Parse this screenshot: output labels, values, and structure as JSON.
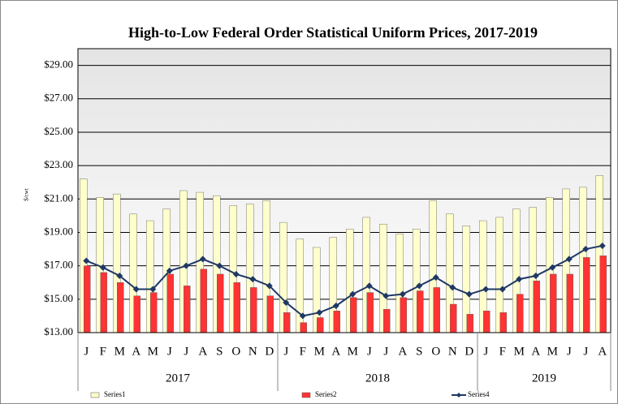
{
  "chart_data": {
    "type": "bar_line",
    "title": "High-to-Low Federal Order Statistical Uniform Prices, 2017-2019",
    "ylabel": "$/cwt",
    "categories": [
      "J",
      "F",
      "M",
      "A",
      "M",
      "J",
      "J",
      "A",
      "S",
      "O",
      "N",
      "D",
      "J",
      "F",
      "M",
      "A",
      "M",
      "J",
      "J",
      "A",
      "S",
      "O",
      "N",
      "D",
      "J",
      "F",
      "M",
      "A",
      "M",
      "J",
      "J",
      "A"
    ],
    "x_groups": [
      {
        "label": "2017",
        "size": 12
      },
      {
        "label": "2018",
        "size": 12
      },
      {
        "label": "2019",
        "size": 8
      }
    ],
    "series": [
      {
        "name": "Series1",
        "type": "bar",
        "color": "#ffffcc",
        "values": [
          22.2,
          21.1,
          21.3,
          20.1,
          19.7,
          20.4,
          21.5,
          21.4,
          21.2,
          20.6,
          20.7,
          20.9,
          19.6,
          18.6,
          18.1,
          18.7,
          19.2,
          19.9,
          19.5,
          18.9,
          19.2,
          20.9,
          20.1,
          19.4,
          19.7,
          19.9,
          20.4,
          20.5,
          21.1,
          21.6,
          21.7,
          22.4
        ]
      },
      {
        "name": "Series2",
        "type": "bar",
        "color": "#ff3333",
        "values": [
          17.0,
          16.6,
          16.0,
          15.2,
          15.4,
          16.5,
          15.8,
          16.8,
          16.5,
          16.0,
          15.7,
          15.2,
          14.2,
          13.6,
          13.9,
          14.3,
          15.1,
          15.4,
          14.4,
          15.1,
          15.5,
          15.7,
          14.7,
          14.1,
          14.3,
          14.2,
          15.3,
          16.1,
          16.5,
          16.5,
          17.5,
          17.6
        ]
      },
      {
        "name": "Series4",
        "type": "line",
        "color": "#1f3864",
        "values": [
          17.3,
          16.9,
          16.4,
          15.6,
          15.6,
          16.7,
          17.0,
          17.4,
          17.0,
          16.5,
          16.2,
          15.8,
          14.8,
          14.0,
          14.2,
          14.6,
          15.3,
          15.8,
          15.2,
          15.3,
          15.8,
          16.3,
          15.7,
          15.3,
          15.6,
          15.6,
          16.2,
          16.4,
          16.9,
          17.4,
          18.0,
          18.2
        ]
      }
    ],
    "ylim": [
      13,
      30
    ],
    "yticks": [
      {
        "value": 13,
        "label": "$13.00"
      },
      {
        "value": 15,
        "label": "$15.00"
      },
      {
        "value": 17,
        "label": "$17.00"
      },
      {
        "value": 19,
        "label": "$19.00"
      },
      {
        "value": 21,
        "label": "$21.00"
      },
      {
        "value": 23,
        "label": "$23.00"
      },
      {
        "value": 25,
        "label": "$25.00"
      },
      {
        "value": 27,
        "label": "$27.00"
      },
      {
        "value": 29,
        "label": "$29.00"
      }
    ],
    "grid": true,
    "legend": "bottom"
  }
}
